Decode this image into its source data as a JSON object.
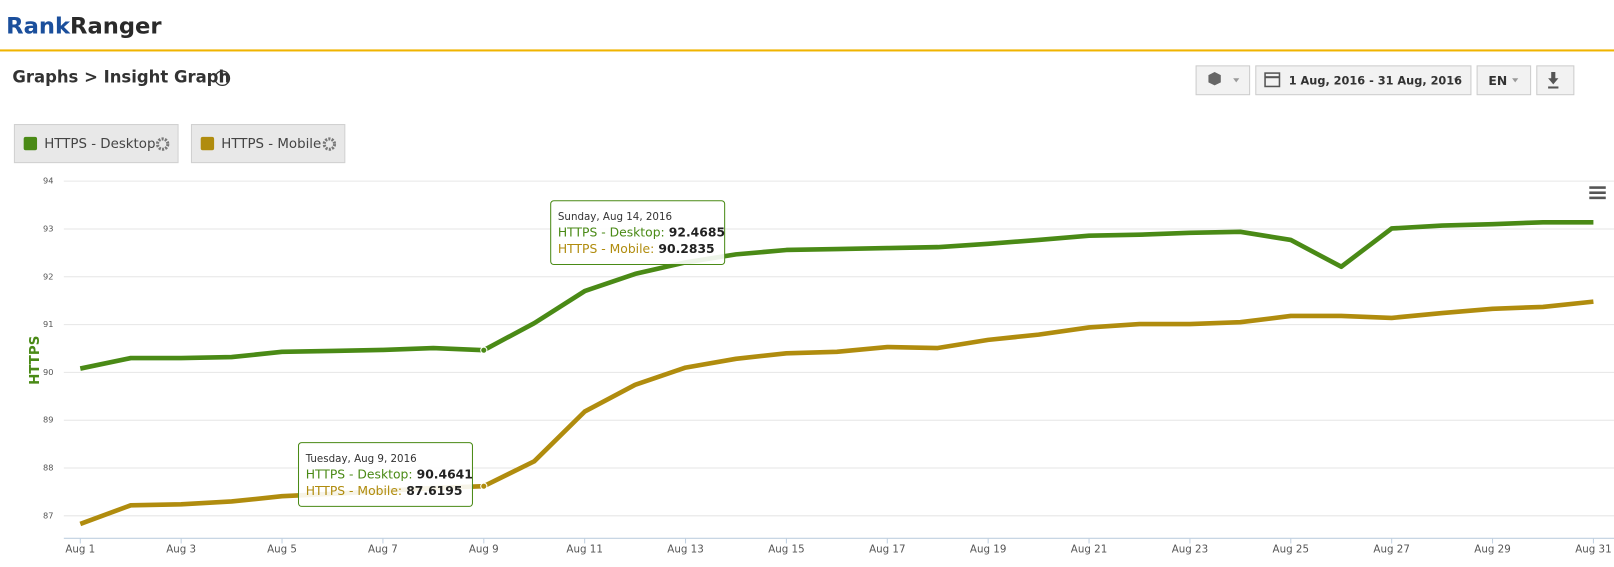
{
  "header": {
    "logo": [
      "Rank",
      "Ranger"
    ],
    "breadcrumb": "Graphs > Insight Graph"
  },
  "toolbar": {
    "date_range": "1 Aug, 2016 - 31 Aug, 2016",
    "language": "EN"
  },
  "tooltips": [
    {
      "date": "Sunday, Aug 14, 2016",
      "lines": [
        "HTTPS - Desktop:",
        "HTTPS - Mobile:"
      ]
    },
    {
      "date": "Tuesday, Aug 9, 2016",
      "lines": [
        "HTTPS - Desktop:",
        "HTTPS - Mobile:"
      ]
    }
  ],
  "chart_data": {
    "type": "line",
    "y_label": "HTTPS",
    "categories": [
      "Aug 1",
      null,
      "Aug 3",
      null,
      "Aug 5",
      null,
      "Aug 7",
      null,
      "Aug 9",
      null,
      "Aug 11",
      null,
      "Aug 13",
      null,
      "Aug 15",
      null,
      "Aug 17",
      null,
      "Aug 19",
      null,
      "Aug 21",
      null,
      "Aug 23",
      null,
      "Aug 25",
      null,
      "Aug 27",
      null,
      "Aug 29",
      null,
      "Aug 31"
    ],
    "series": [
      {
        "name": "HTTPS - Desktop",
        "color": "#4a8a16",
        "values": [
          90.08,
          90.3,
          90.3,
          90.32,
          90.43,
          90.45,
          90.47,
          90.51,
          90.4641,
          91.03,
          91.7,
          92.06,
          92.3,
          92.4685,
          92.56,
          92.58,
          92.6,
          92.62,
          92.69,
          92.77,
          92.86,
          92.88,
          92.92,
          92.94,
          92.77,
          92.21,
          93.01,
          93.07,
          93.1,
          93.14,
          93.14
        ]
      },
      {
        "name": "HTTPS - Mobile",
        "color": "#b08c0e",
        "values": [
          86.83,
          87.22,
          87.24,
          87.3,
          87.41,
          87.46,
          87.52,
          87.58,
          87.6195,
          88.14,
          89.18,
          89.74,
          90.1,
          90.2835,
          90.4,
          90.43,
          90.53,
          90.51,
          90.68,
          90.79,
          90.94,
          91.01,
          91.01,
          91.05,
          91.18,
          91.18,
          91.14,
          91.24,
          91.33,
          91.37,
          91.48
        ]
      }
    ],
    "ylim": [
      86.53,
      94
    ],
    "yticks": [
      87,
      88,
      89,
      90,
      91,
      92,
      93,
      94
    ],
    "grid": true
  }
}
